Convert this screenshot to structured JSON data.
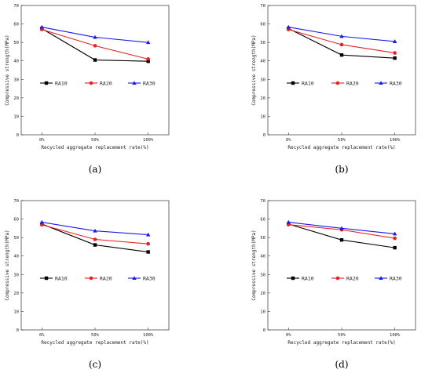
{
  "chart_data": [
    {
      "panel": "(a)",
      "type": "line",
      "categories": [
        "0%",
        "50%",
        "100%"
      ],
      "ylabel": "Compressive strength(MPa)",
      "xlabel": "Recycled aggregate replacement rate(%)",
      "ylim": [
        0,
        70
      ],
      "yticks": [
        0,
        10,
        20,
        30,
        40,
        50,
        60,
        70
      ],
      "legend": "center",
      "series": [
        {
          "name": "RA10",
          "color": "#000000",
          "marker": "square",
          "values": [
            57.5,
            40.5,
            39.8
          ]
        },
        {
          "name": "RA20",
          "color": "#e8211f",
          "marker": "circle",
          "values": [
            57.0,
            48.2,
            41.0
          ]
        },
        {
          "name": "RA30",
          "color": "#1a1ae6",
          "marker": "triangle",
          "values": [
            58.3,
            52.8,
            50.0
          ]
        }
      ]
    },
    {
      "panel": "(b)",
      "type": "line",
      "categories": [
        "0%",
        "50%",
        "100%"
      ],
      "ylabel": "Compressive strength(MPa)",
      "xlabel": "Recycled aggregate replacement rate(%)",
      "ylim": [
        0,
        70
      ],
      "yticks": [
        0,
        10,
        20,
        30,
        40,
        50,
        60,
        70
      ],
      "legend": "center",
      "series": [
        {
          "name": "RA10",
          "color": "#000000",
          "marker": "square",
          "values": [
            57.5,
            43.2,
            41.5
          ]
        },
        {
          "name": "RA20",
          "color": "#e8211f",
          "marker": "circle",
          "values": [
            57.0,
            48.8,
            44.3
          ]
        },
        {
          "name": "RA30",
          "color": "#1a1ae6",
          "marker": "triangle",
          "values": [
            58.3,
            53.3,
            50.5
          ]
        }
      ]
    },
    {
      "panel": "(c)",
      "type": "line",
      "categories": [
        "0%",
        "50%",
        "100%"
      ],
      "ylabel": "Compressive strength(MPa)",
      "xlabel": "Recycled aggregate replacement rate(%)",
      "ylim": [
        0,
        70
      ],
      "yticks": [
        0,
        10,
        20,
        30,
        40,
        50,
        60,
        70
      ],
      "legend": "center",
      "series": [
        {
          "name": "RA10",
          "color": "#000000",
          "marker": "square",
          "values": [
            57.3,
            46.0,
            42.2
          ]
        },
        {
          "name": "RA20",
          "color": "#e8211f",
          "marker": "circle",
          "values": [
            56.9,
            49.0,
            46.6
          ]
        },
        {
          "name": "RA30",
          "color": "#1a1ae6",
          "marker": "triangle",
          "values": [
            58.3,
            53.6,
            51.5
          ]
        }
      ]
    },
    {
      "panel": "(d)",
      "type": "line",
      "categories": [
        "0%",
        "50%",
        "100%"
      ],
      "ylabel": "Compressive strength(MPa)",
      "xlabel": "Recycled aggregate replacement rate(%)",
      "ylim": [
        0,
        70
      ],
      "yticks": [
        0,
        10,
        20,
        30,
        40,
        50,
        60,
        70
      ],
      "legend": "center",
      "series": [
        {
          "name": "RA10",
          "color": "#000000",
          "marker": "square",
          "values": [
            57.3,
            48.7,
            44.5
          ]
        },
        {
          "name": "RA20",
          "color": "#e8211f",
          "marker": "circle",
          "values": [
            57.0,
            54.2,
            49.6
          ]
        },
        {
          "name": "RA30",
          "color": "#1a1ae6",
          "marker": "triangle",
          "values": [
            58.3,
            55.0,
            52.0
          ]
        }
      ]
    }
  ]
}
